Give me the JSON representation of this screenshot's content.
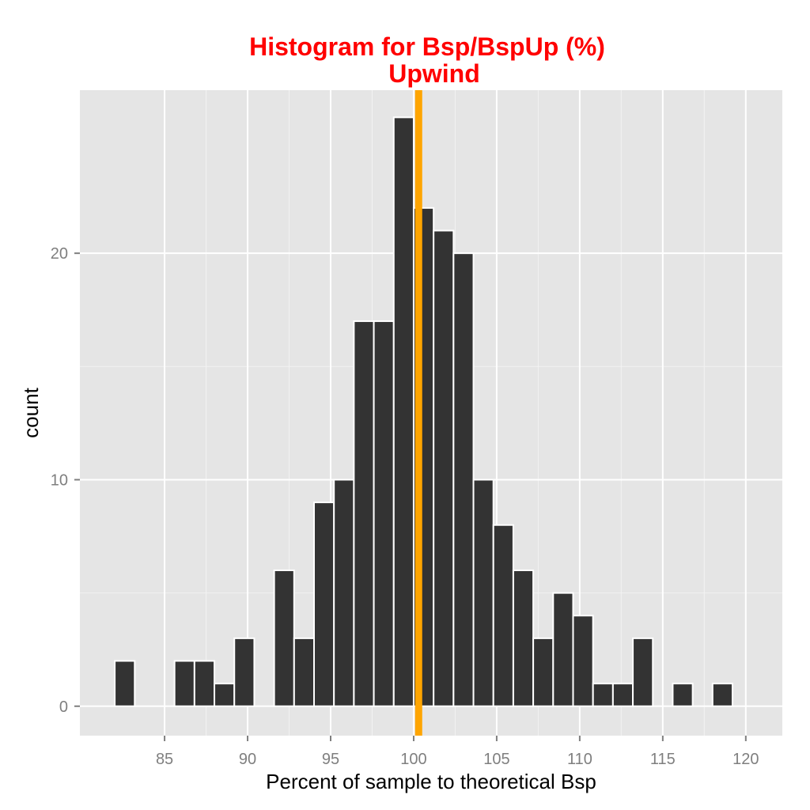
{
  "chart_data": {
    "type": "bar",
    "title": "Histogram for Bsp/BspUp (%)",
    "subtitle": "Upwind",
    "xlabel": "Percent of sample to theoretical Bsp",
    "ylabel": "count",
    "xlim": [
      79.9,
      122.2
    ],
    "ylim": [
      -1.3,
      27.2
    ],
    "x_ticks": [
      85,
      90,
      95,
      100,
      105,
      110,
      115,
      120
    ],
    "y_ticks": [
      0,
      10,
      20
    ],
    "bin_width": 1.2,
    "bins": [
      {
        "center": 82.6,
        "count": 2
      },
      {
        "center": 83.8,
        "count": 0
      },
      {
        "center": 85.0,
        "count": 0
      },
      {
        "center": 86.2,
        "count": 2
      },
      {
        "center": 87.4,
        "count": 2
      },
      {
        "center": 88.6,
        "count": 1
      },
      {
        "center": 89.8,
        "count": 3
      },
      {
        "center": 91.0,
        "count": 0
      },
      {
        "center": 92.2,
        "count": 6
      },
      {
        "center": 93.4,
        "count": 3
      },
      {
        "center": 94.6,
        "count": 9
      },
      {
        "center": 95.8,
        "count": 10
      },
      {
        "center": 97.0,
        "count": 17
      },
      {
        "center": 98.2,
        "count": 17
      },
      {
        "center": 99.4,
        "count": 26
      },
      {
        "center": 100.6,
        "count": 22
      },
      {
        "center": 101.8,
        "count": 21
      },
      {
        "center": 103.0,
        "count": 20
      },
      {
        "center": 104.2,
        "count": 10
      },
      {
        "center": 105.4,
        "count": 8
      },
      {
        "center": 106.6,
        "count": 6
      },
      {
        "center": 107.8,
        "count": 3
      },
      {
        "center": 109.0,
        "count": 5
      },
      {
        "center": 110.2,
        "count": 4
      },
      {
        "center": 111.4,
        "count": 1
      },
      {
        "center": 112.6,
        "count": 1
      },
      {
        "center": 113.8,
        "count": 3
      },
      {
        "center": 115.0,
        "count": 0
      },
      {
        "center": 116.2,
        "count": 1
      },
      {
        "center": 117.4,
        "count": 0
      },
      {
        "center": 118.6,
        "count": 1
      }
    ],
    "reference_line": {
      "x": 100.3,
      "color": "#ffa500"
    },
    "bar_fill": "#333333",
    "bar_outline": "#ffffff",
    "panel_background": "#e5e5e5",
    "grid": true,
    "title_color": "#ff0000"
  }
}
